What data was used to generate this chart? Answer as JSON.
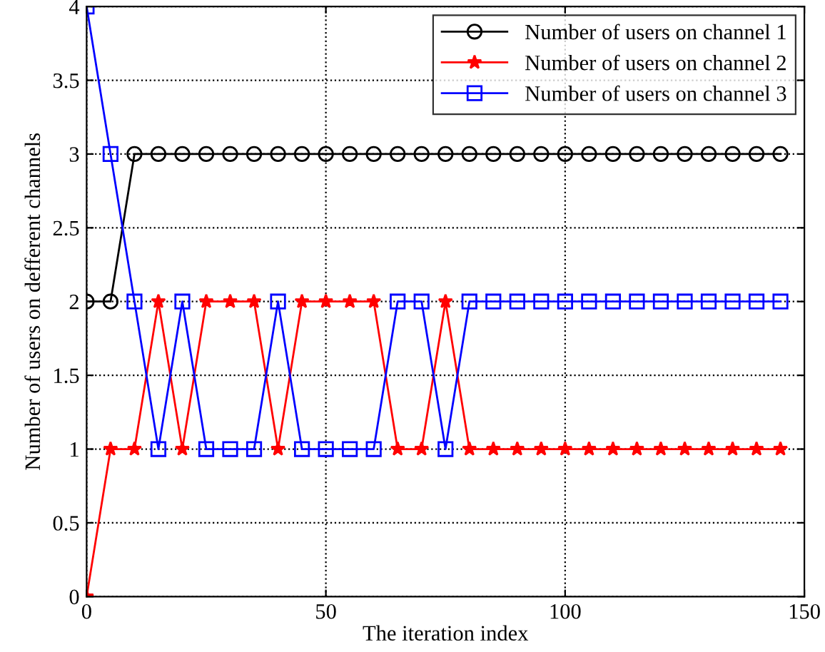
{
  "chart_data": {
    "type": "line",
    "xlabel": "The iteration index",
    "ylabel": "Number of users on defferent channels",
    "x": [
      0,
      5,
      10,
      15,
      20,
      25,
      30,
      35,
      40,
      45,
      50,
      55,
      60,
      65,
      70,
      75,
      80,
      85,
      90,
      95,
      100,
      105,
      110,
      115,
      120,
      125,
      130,
      135,
      140,
      145
    ],
    "series": [
      {
        "name": "Number of users on channel 1",
        "color": "#000000",
        "marker": "circle",
        "values": [
          2,
          2,
          3,
          3,
          3,
          3,
          3,
          3,
          3,
          3,
          3,
          3,
          3,
          3,
          3,
          3,
          3,
          3,
          3,
          3,
          3,
          3,
          3,
          3,
          3,
          3,
          3,
          3,
          3,
          3
        ]
      },
      {
        "name": "Number of users on channel 2",
        "color": "#ff0000",
        "marker": "star",
        "values": [
          0,
          1,
          1,
          2,
          1,
          2,
          2,
          2,
          1,
          2,
          2,
          2,
          2,
          1,
          1,
          2,
          1,
          1,
          1,
          1,
          1,
          1,
          1,
          1,
          1,
          1,
          1,
          1,
          1,
          1
        ]
      },
      {
        "name": "Number of users on channel 3",
        "color": "#0000ff",
        "marker": "square",
        "values": [
          4,
          3,
          2,
          1,
          2,
          1,
          1,
          1,
          2,
          1,
          1,
          1,
          1,
          2,
          2,
          1,
          2,
          2,
          2,
          2,
          2,
          2,
          2,
          2,
          2,
          2,
          2,
          2,
          2,
          2
        ]
      }
    ],
    "xlim": [
      0,
      150
    ],
    "xticks": [
      0,
      50,
      100,
      150
    ],
    "ylim": [
      0,
      4
    ],
    "yticks": [
      0,
      0.5,
      1,
      1.5,
      2,
      2.5,
      3,
      3.5,
      4
    ],
    "grid": true,
    "legend": "top right",
    "line_style": "solid"
  }
}
